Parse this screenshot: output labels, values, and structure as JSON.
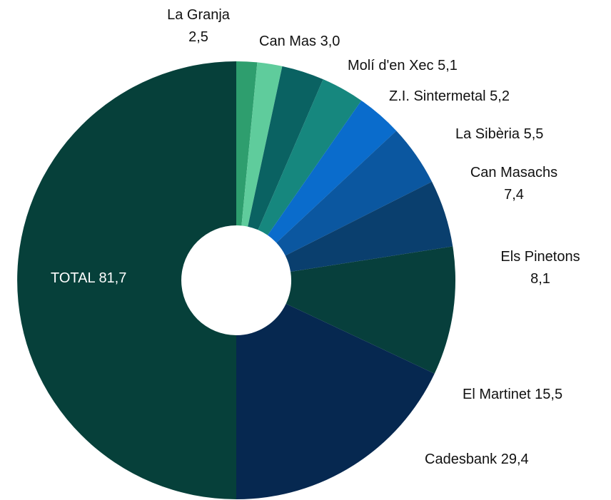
{
  "chart_data": {
    "type": "donut",
    "categories": [
      "La Granja",
      "Can Mas",
      "Molí d'en Xec",
      "Z.I. Sintermetal",
      "La Sibèria",
      "Can Masachs",
      "Els Pinetons",
      "El Martinet",
      "Cadesbank",
      "TOTAL"
    ],
    "values": [
      2.5,
      3.0,
      5.1,
      5.2,
      5.5,
      7.4,
      8.1,
      15.5,
      29.4,
      81.7
    ],
    "value_labels": [
      "2,5",
      "3,0",
      "5,1",
      "5,2",
      "5,5",
      "7,4",
      "8,1",
      "15,5",
      "29,4",
      "81,7"
    ],
    "colors": [
      "#2e9e6e",
      "#5fcc9c",
      "#0a6262",
      "#16877e",
      "#0a6ccc",
      "#0b57a0",
      "#0a3f6e",
      "#073f3c",
      "#062850",
      "#06403a"
    ]
  }
}
